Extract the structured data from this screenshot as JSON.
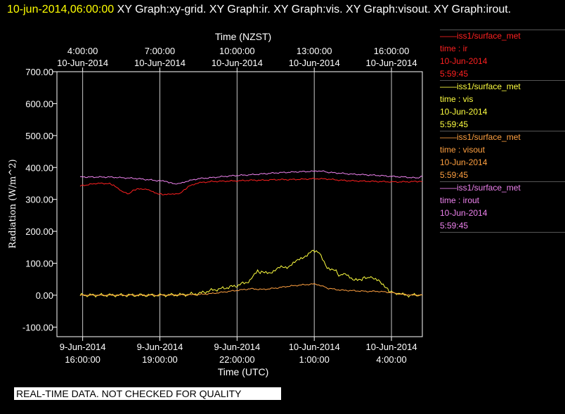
{
  "header": {
    "timestamp": "10-jun-2014,06:00:00",
    "graphs": "  XY Graph:xy-grid.  XY Graph:ir.  XY Graph:vis.  XY Graph:visout.  XY Graph:irout."
  },
  "legend": [
    {
      "source": "——iss1/surface_met",
      "var": "time : ir",
      "date": "10-Jun-2014",
      "time": "5:59:45",
      "color": "#ff2020"
    },
    {
      "source": "——iss1/surface_met",
      "var": "time : vis",
      "date": "10-Jun-2014",
      "time": "5:59:45",
      "color": "#ffff40"
    },
    {
      "source": "——iss1/surface_met",
      "var": "time : visout",
      "date": "10-Jun-2014",
      "time": "5:59:45",
      "color": "#ffa040"
    },
    {
      "source": "——iss1/surface_met",
      "var": "time : irout",
      "date": "10-Jun-2014",
      "time": "5:59:45",
      "color": "#ee82ee"
    }
  ],
  "footer_note": "REAL-TIME DATA. NOT CHECKED FOR QUALITY",
  "chart_data": {
    "type": "line",
    "ylabel": "Radiation  (W/m^2)",
    "xlabel_bottom": "Time (UTC)",
    "xlabel_top": "Time (NZST)",
    "ylim": [
      -130,
      700
    ],
    "xlim": [
      -1.0,
      13.2
    ],
    "grid": "vertical",
    "y_ticks": [
      700,
      600,
      500,
      400,
      300,
      200,
      100,
      0,
      -100
    ],
    "y_tick_labels": [
      "700.00",
      "600.00",
      "500.00",
      "400.00",
      "300.00",
      "200.00",
      "100.00",
      "0.00",
      "-100.00"
    ],
    "x_ticks": [
      0,
      3,
      6,
      9,
      12
    ],
    "x_tick_labels_bottom": [
      [
        "9-Jun-2014",
        "16:00:00"
      ],
      [
        "9-Jun-2014",
        "19:00:00"
      ],
      [
        "9-Jun-2014",
        "22:00:00"
      ],
      [
        "10-Jun-2014",
        "1:00:00"
      ],
      [
        "10-Jun-2014",
        "4:00:00"
      ]
    ],
    "x_tick_labels_top": [
      [
        "4:00:00",
        "10-Jun-2014"
      ],
      [
        "7:00:00",
        "10-Jun-2014"
      ],
      [
        "10:00:00",
        "10-Jun-2014"
      ],
      [
        "13:00:00",
        "10-Jun-2014"
      ],
      [
        "16:00:00",
        "10-Jun-2014"
      ]
    ],
    "series": [
      {
        "id": "irout",
        "color": "#ee82ee",
        "x": [
          -0.1,
          0.5,
          1,
          1.5,
          2,
          2.5,
          3,
          3.3,
          3.5,
          3.7,
          4,
          4.5,
          5,
          5.5,
          6,
          6.5,
          7,
          7.5,
          8,
          8.5,
          9,
          9.3,
          9.5,
          10,
          10.5,
          11,
          11.5,
          12,
          12.5,
          13,
          13.2
        ],
        "y": [
          370,
          370,
          370,
          368,
          366,
          362,
          358,
          355,
          350,
          348,
          356,
          365,
          368,
          372,
          375,
          377,
          380,
          383,
          385,
          387,
          388,
          390,
          385,
          382,
          379,
          377,
          375,
          372,
          370,
          367,
          372
        ]
      },
      {
        "id": "ir",
        "color": "#ff2020",
        "x": [
          -0.1,
          0.5,
          1,
          1.2,
          1.5,
          1.8,
          2,
          2.2,
          2.5,
          2.8,
          3,
          3.2,
          3.5,
          3.8,
          4,
          4.2,
          4.5,
          5,
          5.5,
          6,
          6.5,
          7,
          7.5,
          8,
          8.5,
          9,
          9.5,
          10,
          10.5,
          11,
          11.5,
          12,
          12.5,
          13,
          13.2
        ],
        "y": [
          342,
          350,
          350,
          345,
          325,
          318,
          330,
          333,
          333,
          320,
          317,
          315,
          316,
          320,
          333,
          345,
          352,
          356,
          357,
          358,
          360,
          360,
          362,
          362,
          363,
          365,
          364,
          360,
          358,
          357,
          356,
          355,
          355,
          356,
          356
        ]
      },
      {
        "id": "vis",
        "color": "#ffff40",
        "x": [
          -0.1,
          1,
          2,
          3,
          4,
          4.5,
          5,
          5.5,
          6,
          6.5,
          6.8,
          7,
          7.3,
          7.6,
          8,
          8.3,
          8.6,
          8.9,
          9.2,
          9.5,
          9.8,
          10,
          10.2,
          10.5,
          10.8,
          11,
          11.2,
          11.5,
          11.8,
          12,
          12.2,
          12.5,
          13,
          13.2
        ],
        "y": [
          0,
          0,
          0,
          0,
          2,
          5,
          15,
          22,
          30,
          45,
          75,
          70,
          72,
          85,
          90,
          105,
          120,
          140,
          130,
          88,
          78,
          60,
          70,
          45,
          50,
          55,
          55,
          50,
          20,
          10,
          5,
          0,
          0,
          0
        ]
      },
      {
        "id": "visout",
        "color": "#ffa040",
        "x": [
          -0.1,
          1,
          2,
          3,
          4,
          4.5,
          5,
          5.5,
          6,
          6.5,
          7,
          7.5,
          8,
          8.5,
          9,
          9.3,
          9.5,
          10,
          10.5,
          11,
          11.5,
          12,
          12.5,
          13,
          13.2
        ],
        "y": [
          0,
          0,
          0,
          0,
          1,
          2,
          5,
          10,
          15,
          20,
          18,
          22,
          28,
          32,
          35,
          30,
          22,
          16,
          14,
          12,
          12,
          8,
          2,
          0,
          0
        ]
      }
    ]
  }
}
